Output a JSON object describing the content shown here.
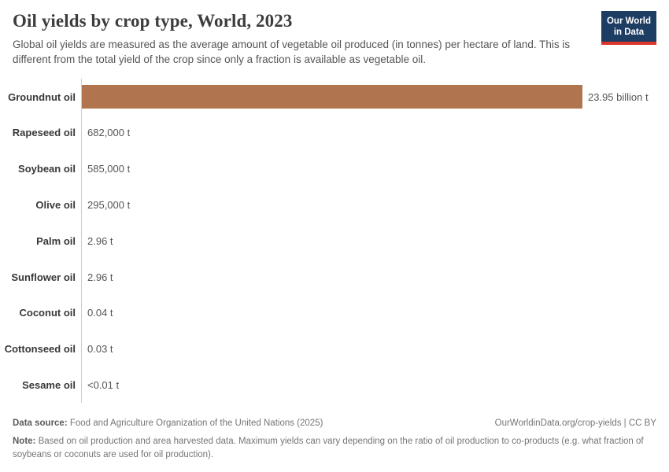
{
  "header": {
    "title": "Oil yields by crop type, World, 2023",
    "subtitle": "Global oil yields are measured as the average amount of vegetable oil produced (in tonnes) per hectare of land. This is different from the total yield of the crop since only a fraction is available as vegetable oil.",
    "logo": {
      "line1": "Our World",
      "line2": "in Data",
      "bg_color": "#1d3d63",
      "stripe_color": "#dc352b",
      "text_color": "#ffffff"
    }
  },
  "chart_data": {
    "type": "bar",
    "orientation": "horizontal",
    "title": "Oil yields by crop type, World, 2023",
    "categories": [
      "Groundnut oil",
      "Rapeseed oil",
      "Soybean oil",
      "Olive oil",
      "Palm oil",
      "Sunflower oil",
      "Coconut oil",
      "Cottonseed oil",
      "Sesame oil"
    ],
    "values": [
      23950000000,
      682000,
      585000,
      295000,
      2.96,
      2.96,
      0.04,
      0.03,
      0.01
    ],
    "value_labels": [
      "23.95 billion t",
      "682,000 t",
      "585,000 t",
      "295,000 t",
      "2.96 t",
      "2.96 t",
      "0.04 t",
      "0.03 t",
      "<0.01 t"
    ],
    "unit": "t",
    "bar_color": "#b0744f",
    "axis_line_color": "#cccccc",
    "xmax": 23950000000,
    "grid": false,
    "legend": "none"
  },
  "footer": {
    "datasource_label": "Data source:",
    "datasource_text": " Food and Agriculture Organization of the United Nations (2025)",
    "link_text": "OurWorldinData.org/crop-yields | CC BY",
    "note_label": "Note:",
    "note_text": " Based on oil production and area harvested data. Maximum yields can vary depending on the ratio of oil production to co-products (e.g. what fraction of soybeans or coconuts are used for oil production)."
  }
}
